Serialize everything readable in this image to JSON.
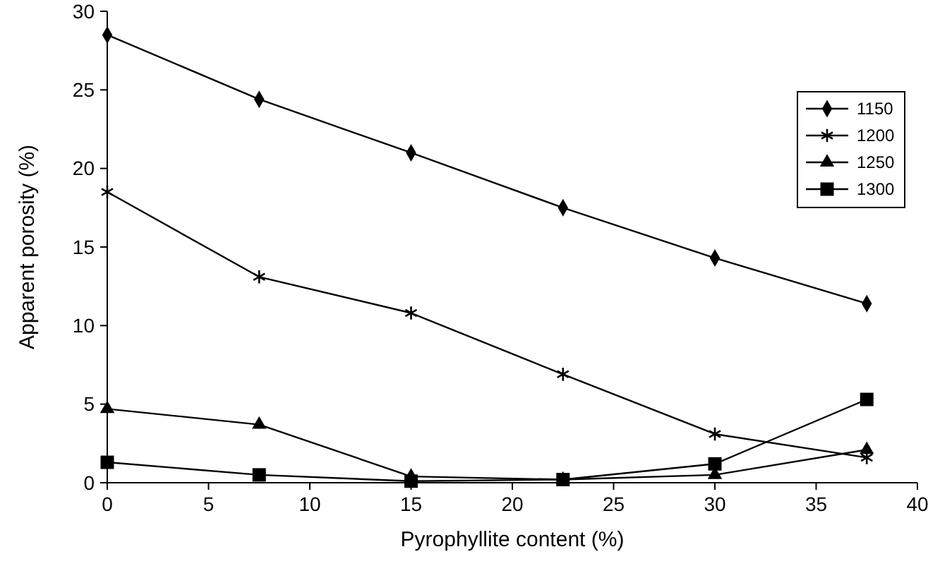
{
  "chart_data": {
    "type": "line",
    "xlabel": "Pyrophyllite content (%)",
    "ylabel": "Apparent porosity (%)",
    "x": [
      0,
      7.5,
      15,
      22.5,
      30,
      37.5
    ],
    "series": [
      {
        "name": "1150",
        "color": "#000000",
        "marker": "diamond",
        "values": [
          28.5,
          24.4,
          21,
          17.5,
          14.3,
          11.4
        ]
      },
      {
        "name": "1200",
        "color": "#000000",
        "marker": "cross",
        "values": [
          18.5,
          13.1,
          10.8,
          6.9,
          3.1,
          1.6
        ]
      },
      {
        "name": "1250",
        "color": "#000000",
        "marker": "triangle",
        "values": [
          4.7,
          3.7,
          0.4,
          0.2,
          0.5,
          2.1
        ]
      },
      {
        "name": "1300",
        "color": "#000000",
        "marker": "square",
        "values": [
          1.3,
          0.5,
          0.1,
          0.2,
          1.2,
          5.3
        ]
      }
    ],
    "xlim": [
      0,
      40
    ],
    "xticks": [
      0,
      5,
      10,
      15,
      20,
      25,
      30,
      35,
      40
    ],
    "ylim": [
      0,
      30
    ],
    "yticks": [
      0,
      5,
      10,
      15,
      20,
      25,
      30
    ],
    "grid": false,
    "legend": "top right",
    "line_style": "solid"
  }
}
